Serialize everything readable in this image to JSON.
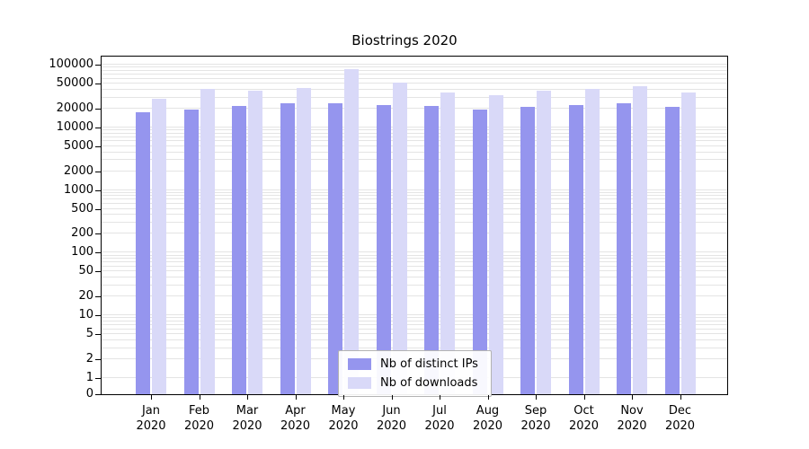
{
  "title": "Biostrings 2020",
  "chart_data": {
    "type": "bar",
    "title": "Biostrings 2020",
    "categories": [
      "Jan 2020",
      "Feb 2020",
      "Mar 2020",
      "Apr 2020",
      "May 2020",
      "Jun 2020",
      "Jul 2020",
      "Aug 2020",
      "Sep 2020",
      "Oct 2020",
      "Nov 2020",
      "Dec 2020"
    ],
    "series": [
      {
        "name": "Nb of distinct IPs",
        "color": "#9595ee",
        "values": [
          17500,
          19000,
          22000,
          24500,
          24500,
          22500,
          22000,
          19500,
          21500,
          23000,
          24000,
          21000
        ]
      },
      {
        "name": "Nb of downloads",
        "color": "#d9d9f8",
        "values": [
          29000,
          41000,
          38000,
          43000,
          85000,
          52000,
          36000,
          33000,
          39000,
          41000,
          46000,
          36000
        ]
      }
    ],
    "xlabel": "",
    "ylabel": "",
    "yscale": "log-with-zero-baseline",
    "ylim": [
      0,
      100000
    ],
    "yticks": [
      0,
      1,
      2,
      5,
      10,
      20,
      50,
      100,
      200,
      500,
      1000,
      2000,
      5000,
      10000,
      20000,
      50000,
      100000
    ],
    "grid": "horizontal-log-minor",
    "legend_position": "inside-bottom-center"
  }
}
